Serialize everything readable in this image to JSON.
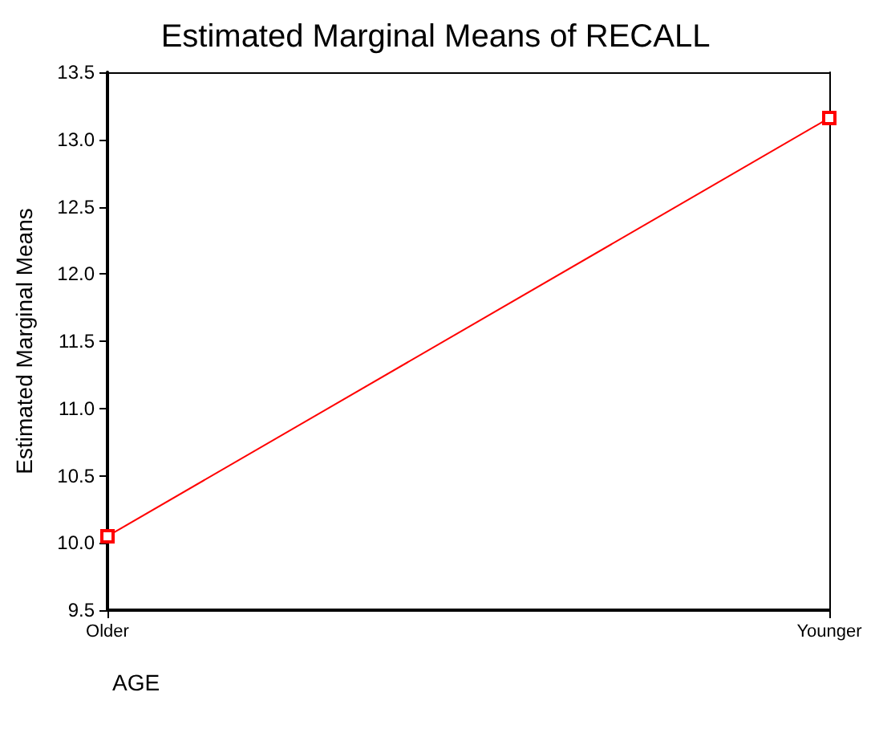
{
  "chart_data": {
    "type": "line",
    "title": "Estimated Marginal Means of RECALL",
    "xlabel": "AGE",
    "ylabel": "Estimated Marginal Means",
    "categories": [
      "Older",
      "Younger"
    ],
    "series": [
      {
        "color": "#ff0000",
        "values": [
          10.05,
          13.16
        ]
      }
    ],
    "ylim": [
      9.5,
      13.5
    ],
    "yticks": [
      9.5,
      {
        "value": 10,
        "label": "10.0"
      },
      10.5,
      {
        "value": 11,
        "label": "11.0"
      },
      11.5,
      {
        "value": 12,
        "label": "12.0"
      },
      12.5,
      {
        "value": 13,
        "label": "13.0"
      },
      13.5
    ],
    "marker": "square"
  }
}
